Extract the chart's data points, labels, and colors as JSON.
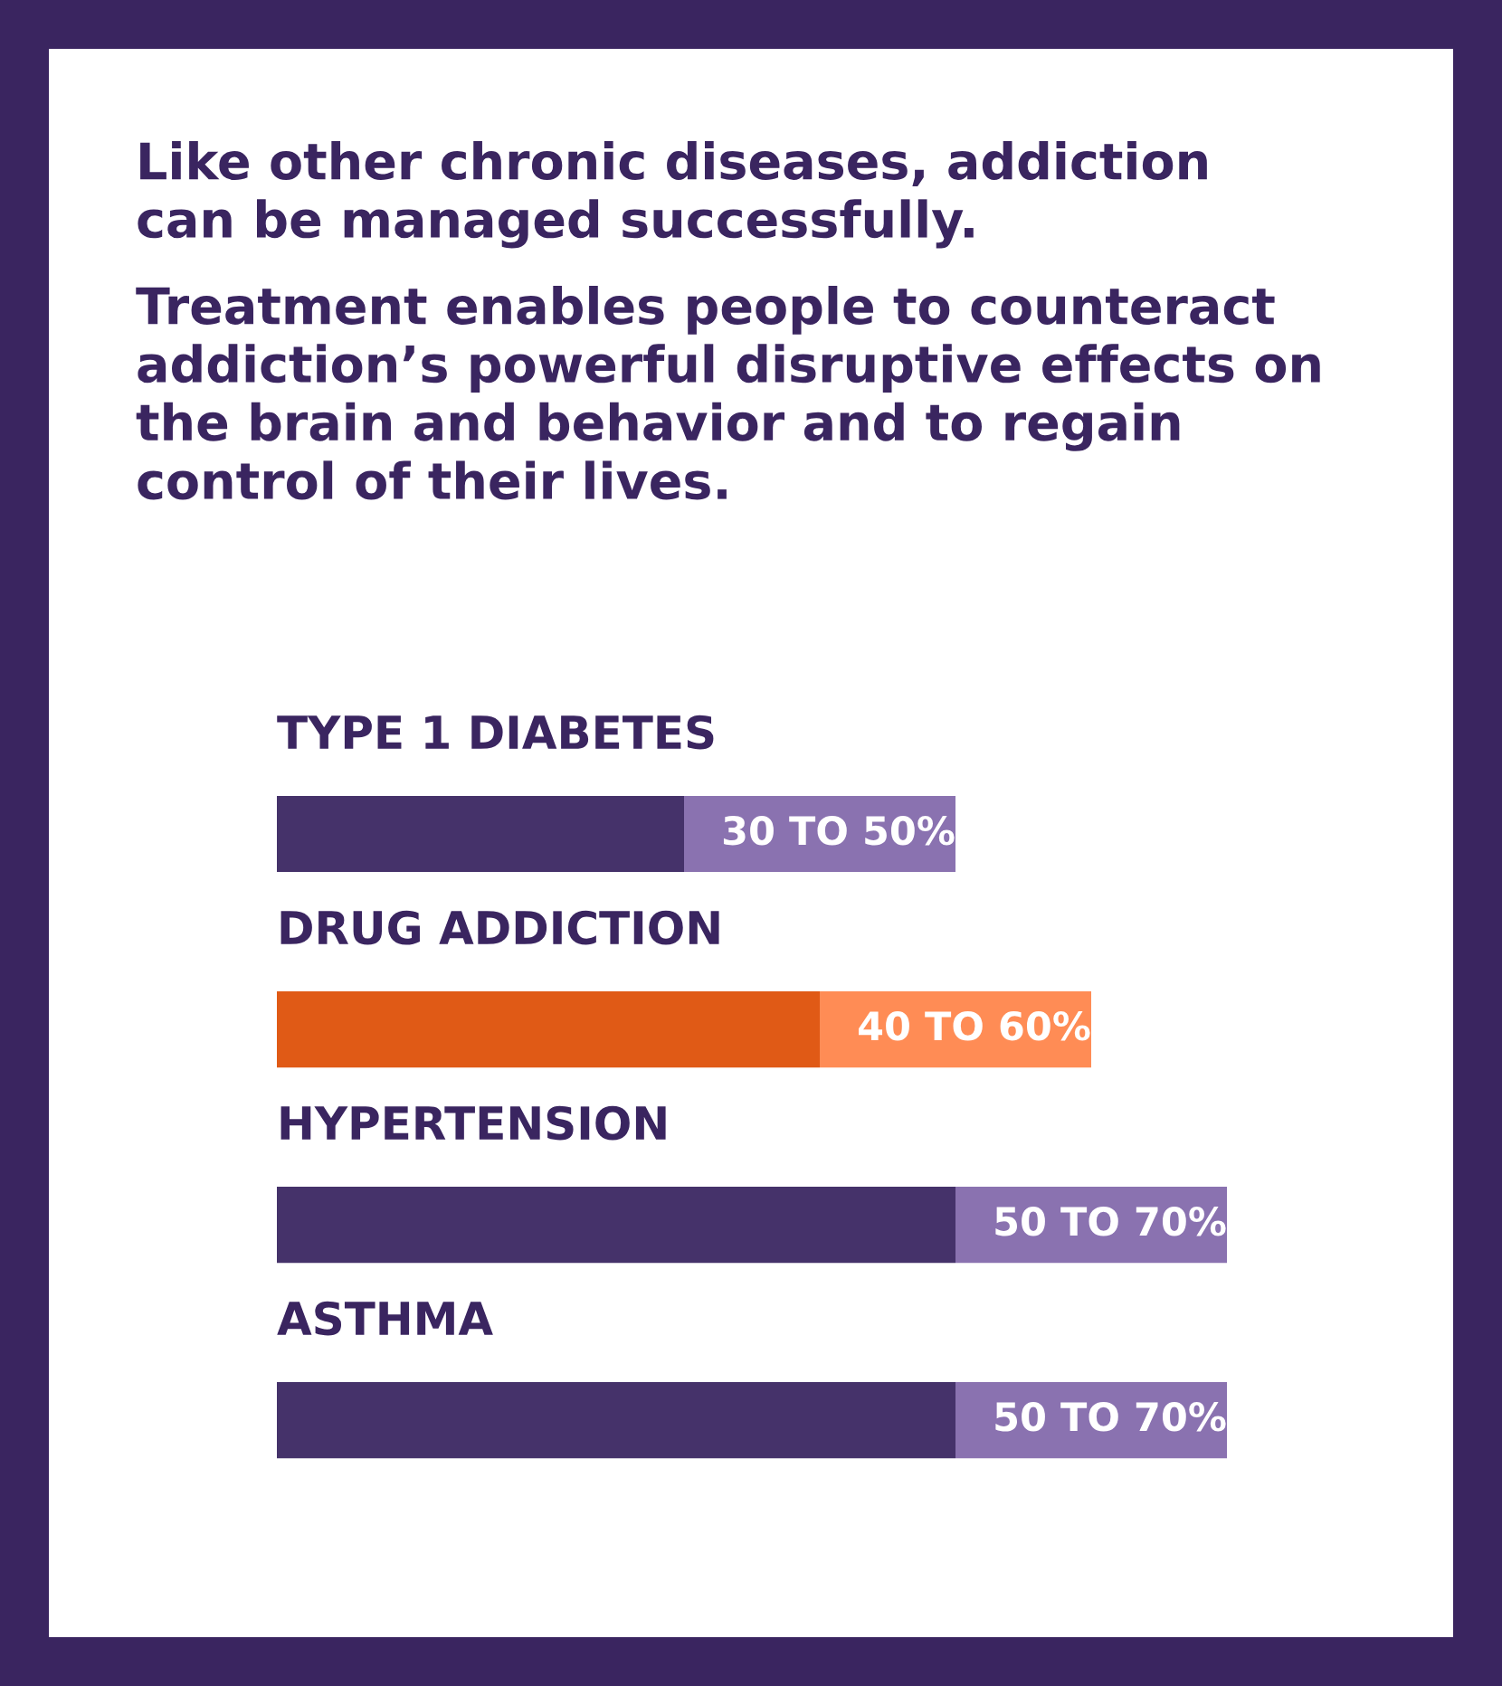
{
  "chart_data": {
    "type": "bar",
    "orientation": "horizontal",
    "stacked": true,
    "title": "Like other chronic diseases, addiction\ncan be managed successfully.",
    "subtitle": "Treatment enables people to counteract\naddiction’s powerful disruptive effects on\nthe brain and behavior and to regain\ncontrol of their lives.",
    "categories": [
      "TYPE 1 DIABETES",
      "DRUG ADDICTION",
      "HYPERTENSION",
      "ASTHMA"
    ],
    "series": [
      {
        "colors": [
          "#45326a",
          "#e05a16",
          "#45326a",
          "#45326a"
        ],
        "values": [
          30,
          40,
          50,
          50
        ],
        "value_labels": [
          "30 TO 50%",
          "40 TO 60%",
          "50 TO 70%",
          "50 TO 70%"
        ]
      },
      {
        "colors": [
          "#8a72b0",
          "#ff8c55",
          "#8a72b0",
          "#8a72b0"
        ],
        "values": [
          20,
          20,
          20,
          20
        ]
      }
    ]
  }
}
